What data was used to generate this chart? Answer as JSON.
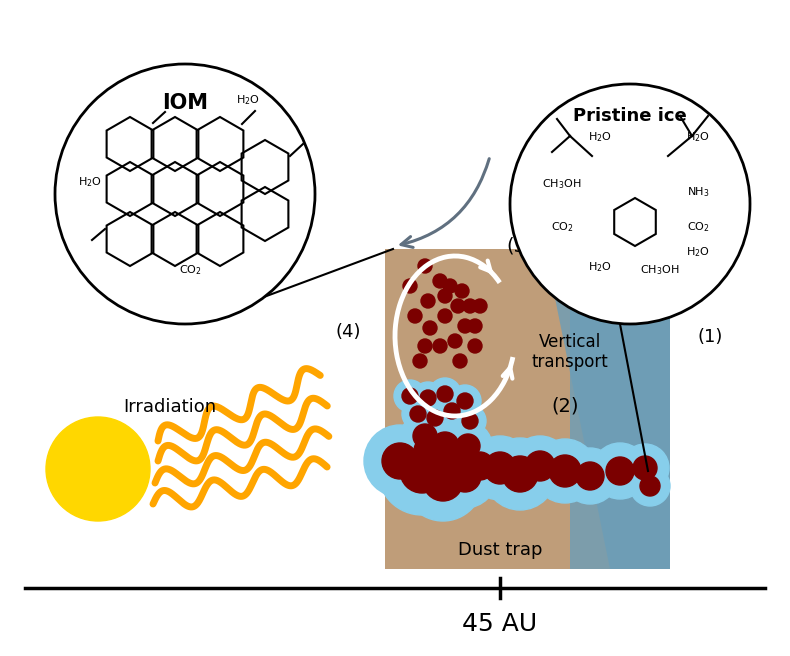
{
  "bg_color": "#ffffff",
  "sun_color": "#FFD700",
  "wave_color": "#FFA500",
  "dark_red": "#7B0000",
  "ice_blue": "#87CEEB",
  "brown_color": "#B8926A",
  "blue_color": "#6B9DB8",
  "arrow_gray": "#607080",
  "irradiation_label": "Irradiation",
  "dust_trap_label": "Dust trap",
  "au_label": "45 AU",
  "vertical_transport_label": "Vertical\ntransport",
  "iom_label": "IOM",
  "pristine_label": "Pristine ice",
  "label_1": "(1)",
  "label_2": "(2)",
  "label_3": "(3)",
  "label_4": "(4)"
}
